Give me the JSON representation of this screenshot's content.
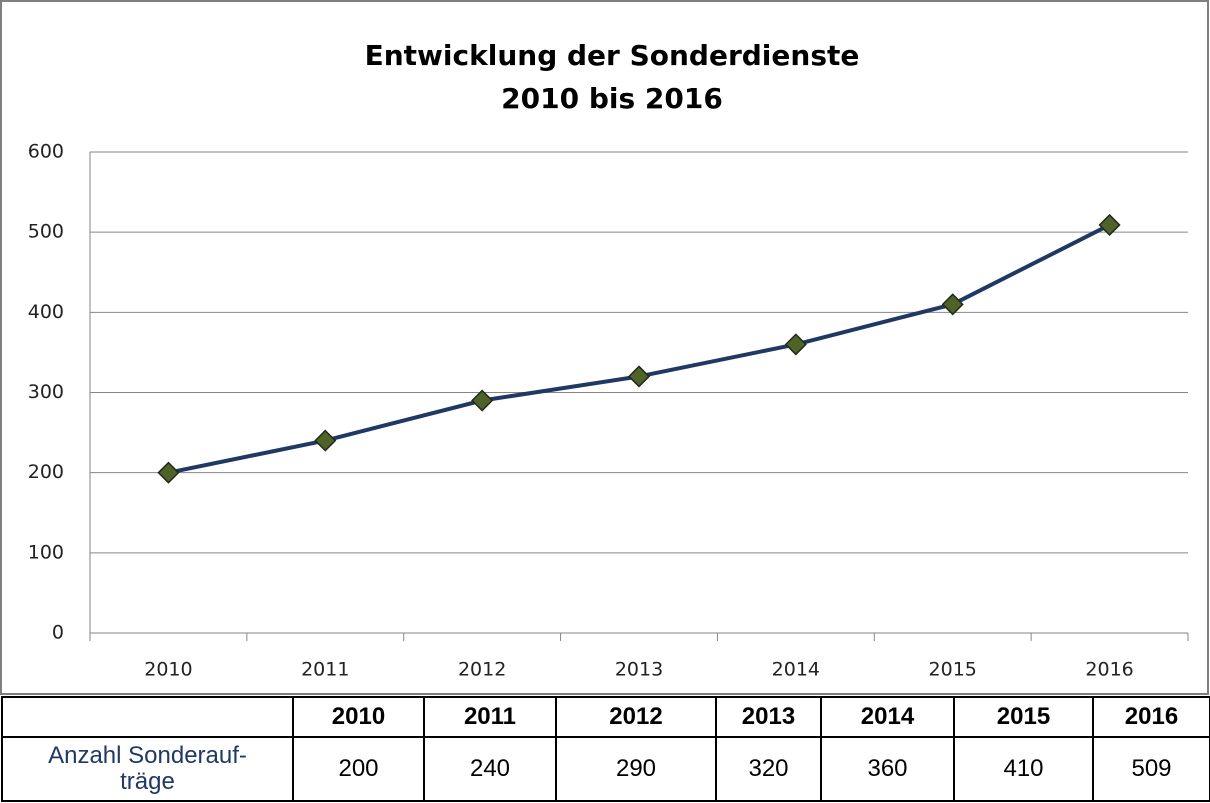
{
  "chart_data": {
    "type": "line",
    "title": "Entwicklung der Sonderdienste",
    "subtitle": "2010 bis 2016",
    "categories": [
      "2010",
      "2011",
      "2012",
      "2013",
      "2014",
      "2015",
      "2016"
    ],
    "values": [
      200,
      240,
      290,
      320,
      360,
      410,
      509
    ],
    "color": "#1f3864",
    "marker_color": "#4f6228",
    "ylim": [
      0,
      600
    ],
    "yticks": [
      0,
      100,
      200,
      300,
      400,
      500,
      600
    ],
    "grid": true
  },
  "table": {
    "row_label": "Anzahl Sonderauf-\nträge"
  }
}
